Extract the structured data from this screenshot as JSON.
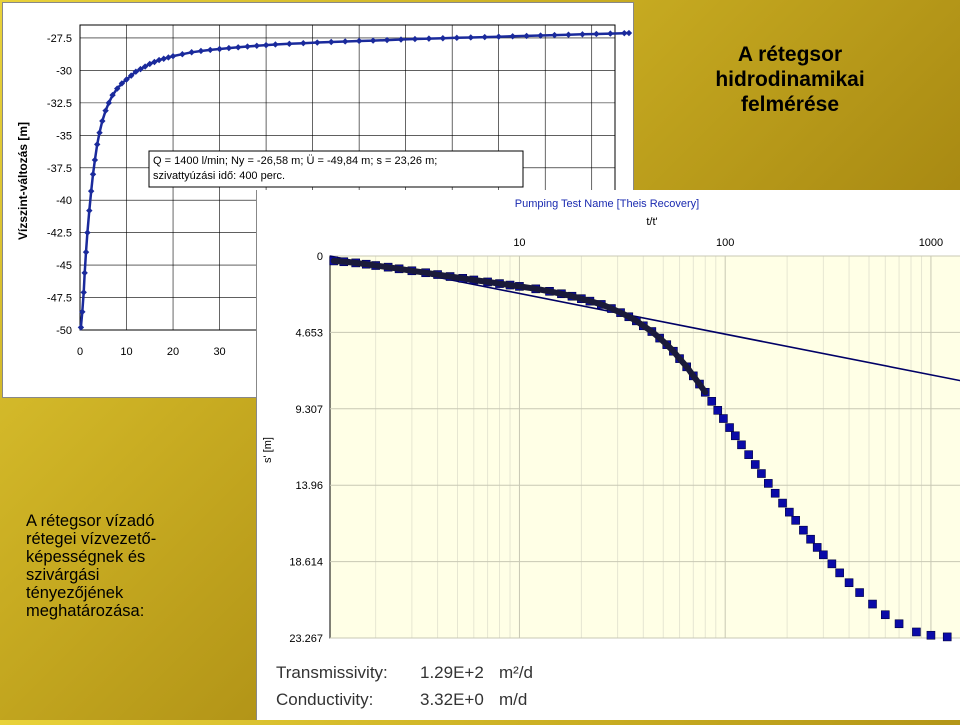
{
  "slide": {
    "title_lines": [
      "A rétegsor",
      "hidrodinamikai",
      "felmérése"
    ],
    "text_lines": [
      "A rétegsor vízadó",
      "rétegei vízvezető-",
      "képességnek és",
      "szivárgási",
      "tényezőjének",
      "meghatározása:"
    ]
  },
  "chart_data": [
    {
      "type": "scatter",
      "title": "",
      "ylabel": "Vízszint-változás [m]",
      "xlabel": "",
      "x_ticks": [
        "0",
        "10",
        "20",
        "30",
        "4"
      ],
      "y_ticks": [
        "-27.5",
        "-30",
        "-32.5",
        "-35",
        "-37.5",
        "-40",
        "-42.5",
        "-45",
        "-47.5",
        "-50"
      ],
      "xlim": [
        0,
        115
      ],
      "ylim": [
        -50,
        -26.5
      ],
      "annotation": [
        "Q = 1400 l/min; Ny = -26,58 m; Ü = -49,84 m; s = 23,26 m;",
        "szivattyúzási idő: 400 perc."
      ],
      "series": [
        {
          "name": "drawdown",
          "color": "#1a2a9c",
          "x": [
            0.2,
            0.5,
            0.8,
            1.0,
            1.3,
            1.6,
            2.0,
            2.4,
            2.8,
            3.2,
            3.7,
            4.2,
            4.8,
            5.5,
            6.2,
            7.0,
            8.0,
            9.0,
            10,
            11,
            12,
            13,
            14,
            15,
            16,
            17,
            18,
            19,
            20,
            22,
            24,
            26,
            28,
            30,
            32,
            34,
            36,
            38,
            40,
            42,
            45,
            48,
            51,
            54,
            57,
            60,
            63,
            66,
            69,
            72,
            75,
            78,
            81,
            84,
            87,
            90,
            93,
            96,
            99,
            102,
            105,
            108,
            111,
            114,
            117,
            118
          ],
          "y": [
            -49.8,
            -48.6,
            -47.1,
            -45.6,
            -44.0,
            -42.5,
            -40.8,
            -39.3,
            -38.0,
            -36.9,
            -35.7,
            -34.8,
            -33.9,
            -33.1,
            -32.5,
            -31.9,
            -31.4,
            -31.0,
            -30.7,
            -30.4,
            -30.1,
            -29.9,
            -29.7,
            -29.5,
            -29.35,
            -29.2,
            -29.1,
            -29.0,
            -28.9,
            -28.75,
            -28.6,
            -28.5,
            -28.42,
            -28.35,
            -28.28,
            -28.22,
            -28.16,
            -28.1,
            -28.05,
            -28.0,
            -27.95,
            -27.9,
            -27.85,
            -27.81,
            -27.77,
            -27.73,
            -27.7,
            -27.66,
            -27.62,
            -27.58,
            -27.55,
            -27.52,
            -27.49,
            -27.46,
            -27.43,
            -27.4,
            -27.37,
            -27.34,
            -27.31,
            -27.28,
            -27.25,
            -27.22,
            -27.19,
            -27.16,
            -27.13,
            -27.12
          ]
        }
      ]
    },
    {
      "type": "scatter",
      "title": "Pumping Test Name [Theis Recovery]",
      "xlabel": "t/t'",
      "ylabel": "s' [m]",
      "x_scale": "log",
      "x_ticks": [
        "10",
        "100",
        "1000"
      ],
      "y_ticks": [
        "0",
        "4.653",
        "9.307",
        "13.96",
        "18.614",
        "23.267"
      ],
      "xlim": [
        1.2,
        1400
      ],
      "ylim": [
        0,
        23.267
      ],
      "series": [
        {
          "name": "measured",
          "color": "#0a0aa8",
          "x": [
            1.25,
            1.4,
            1.6,
            1.8,
            2.0,
            2.3,
            2.6,
            3.0,
            3.5,
            4.0,
            4.6,
            5.3,
            6,
            7,
            8,
            9,
            10,
            12,
            14,
            16,
            18,
            20,
            22,
            25,
            28,
            31,
            34,
            37,
            40,
            44,
            48,
            52,
            56,
            60,
            65,
            70,
            75,
            80,
            86,
            92,
            98,
            105,
            112,
            120,
            130,
            140,
            150,
            162,
            175,
            190,
            205,
            220,
            240,
            260,
            280,
            300,
            330,
            360,
            400,
            450,
            520,
            600,
            700,
            850,
            1000,
            1200
          ],
          "y": [
            0.3,
            0.35,
            0.42,
            0.5,
            0.58,
            0.68,
            0.78,
            0.9,
            1.02,
            1.13,
            1.25,
            1.36,
            1.46,
            1.58,
            1.68,
            1.77,
            1.85,
            2.0,
            2.15,
            2.3,
            2.45,
            2.6,
            2.75,
            2.95,
            3.2,
            3.45,
            3.7,
            3.95,
            4.25,
            4.6,
            5.0,
            5.4,
            5.8,
            6.25,
            6.75,
            7.3,
            7.8,
            8.3,
            8.85,
            9.4,
            9.9,
            10.45,
            10.95,
            11.5,
            12.1,
            12.7,
            13.25,
            13.85,
            14.45,
            15.05,
            15.6,
            16.1,
            16.7,
            17.25,
            17.75,
            18.2,
            18.75,
            19.3,
            19.9,
            20.5,
            21.2,
            21.85,
            22.4,
            22.9,
            23.1,
            23.2
          ]
        },
        {
          "name": "theis-fit-line",
          "color": "#000066",
          "x": [
            1.2,
            1400
          ],
          "y": [
            0.0,
            7.6
          ]
        }
      ],
      "results": [
        {
          "label": "Transmissivity:",
          "value": "1.29E+2",
          "unit": "m²/d"
        },
        {
          "label": "Conductivity:",
          "value": "3.32E+0",
          "unit": "m/d"
        }
      ]
    }
  ]
}
